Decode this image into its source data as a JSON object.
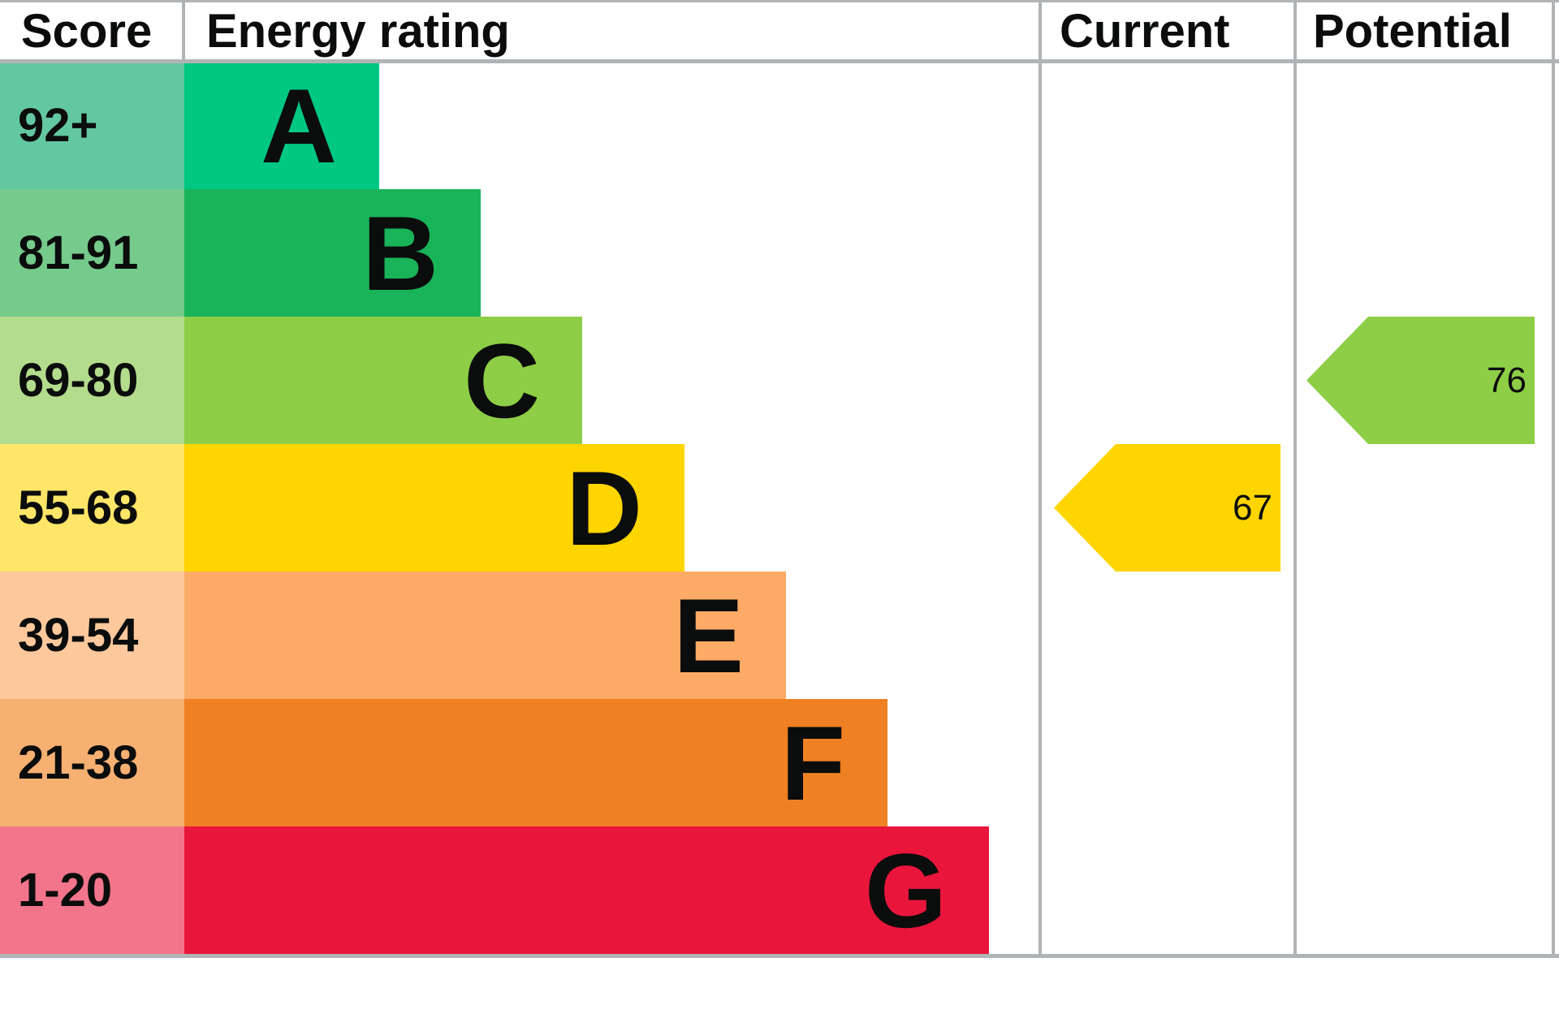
{
  "colors": {
    "background": "#ffffff",
    "border": "#b1b4b6",
    "text": "#0b0c0c"
  },
  "chart_data": {
    "type": "bar",
    "orientation": "horizontal",
    "grid": "column-dividers-only",
    "legend_position": "none",
    "column_headers": {
      "score": "Score",
      "energy_rating": "Energy rating",
      "current": "Current",
      "potential": "Potential"
    },
    "bands": [
      {
        "score_range": "92+",
        "letter": "A",
        "bar_color": "#00c781",
        "score_cell_color": "#63c7a2",
        "relative_length": 1
      },
      {
        "score_range": "81-91",
        "letter": "B",
        "bar_color": "#19b459",
        "score_cell_color": "#76ca8c",
        "relative_length": 2
      },
      {
        "score_range": "69-80",
        "letter": "C",
        "bar_color": "#8dce46",
        "score_cell_color": "#b3dc8c",
        "relative_length": 3
      },
      {
        "score_range": "55-68",
        "letter": "D",
        "bar_color": "#ffd500",
        "score_cell_color": "#ffe668",
        "relative_length": 4
      },
      {
        "score_range": "39-54",
        "letter": "E",
        "bar_color": "#fcaa65",
        "score_cell_color": "#fdc89c",
        "relative_length": 5
      },
      {
        "score_range": "21-38",
        "letter": "F",
        "bar_color": "#ef8023",
        "score_cell_color": "#f5b072",
        "relative_length": 6
      },
      {
        "score_range": "1-20",
        "letter": "G",
        "bar_color": "#e9153b",
        "score_cell_color": "#f2758b",
        "relative_length": 7
      }
    ],
    "markers": {
      "current": {
        "label": "67",
        "value": 67,
        "band": "D",
        "color": "#ffd500"
      },
      "potential": {
        "label": "76",
        "value": 76,
        "band": "C",
        "color": "#8dce46"
      }
    }
  }
}
